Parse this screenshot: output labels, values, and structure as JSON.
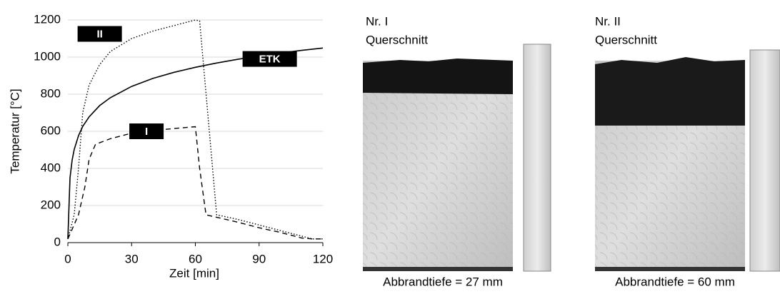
{
  "chart_data": {
    "type": "line",
    "x_label": "Zeit [min]",
    "y_label": "Temperatur [°C]",
    "xlim": [
      0,
      120
    ],
    "xticks": [
      0,
      30,
      60,
      90,
      120
    ],
    "ylim": [
      0,
      1200
    ],
    "yticks": [
      0,
      200,
      400,
      600,
      800,
      1000,
      1200
    ],
    "grid": true,
    "series": [
      {
        "name": "ETK",
        "color": "#000000",
        "dash": "solid",
        "x": [
          0,
          1,
          2,
          3,
          5,
          7,
          10,
          15,
          20,
          30,
          40,
          50,
          60,
          70,
          80,
          90,
          100,
          110,
          120
        ],
        "values": [
          20,
          349,
          445,
          502,
          576,
          626,
          678,
          739,
          781,
          842,
          885,
          918,
          945,
          968,
          988,
          1006,
          1022,
          1036,
          1049
        ]
      },
      {
        "name": "II",
        "color": "#000000",
        "dash": "dotted",
        "x": [
          0,
          3,
          5,
          7,
          10,
          15,
          20,
          30,
          40,
          50,
          60,
          62,
          70,
          80,
          90,
          100,
          110,
          115,
          120
        ],
        "values": [
          20,
          150,
          400,
          700,
          850,
          960,
          1030,
          1100,
          1140,
          1170,
          1200,
          1195,
          150,
          125,
          95,
          65,
          35,
          20,
          20
        ]
      },
      {
        "name": "I",
        "color": "#000000",
        "dash": "dashed",
        "x": [
          0,
          5,
          8,
          10,
          13,
          20,
          30,
          40,
          50,
          60,
          62,
          65,
          80,
          90,
          100,
          110,
          115,
          120
        ],
        "values": [
          20,
          150,
          300,
          450,
          530,
          560,
          590,
          605,
          615,
          625,
          400,
          150,
          110,
          80,
          55,
          25,
          20,
          20
        ]
      }
    ]
  },
  "panels": [
    {
      "title": "Nr. I",
      "subtitle": "Querschnitt",
      "caption": "Abbrandtiefe = 27 mm"
    },
    {
      "title": "Nr. II",
      "subtitle": "Querschnitt",
      "caption": "Abbrandtiefe = 60 mm"
    }
  ]
}
